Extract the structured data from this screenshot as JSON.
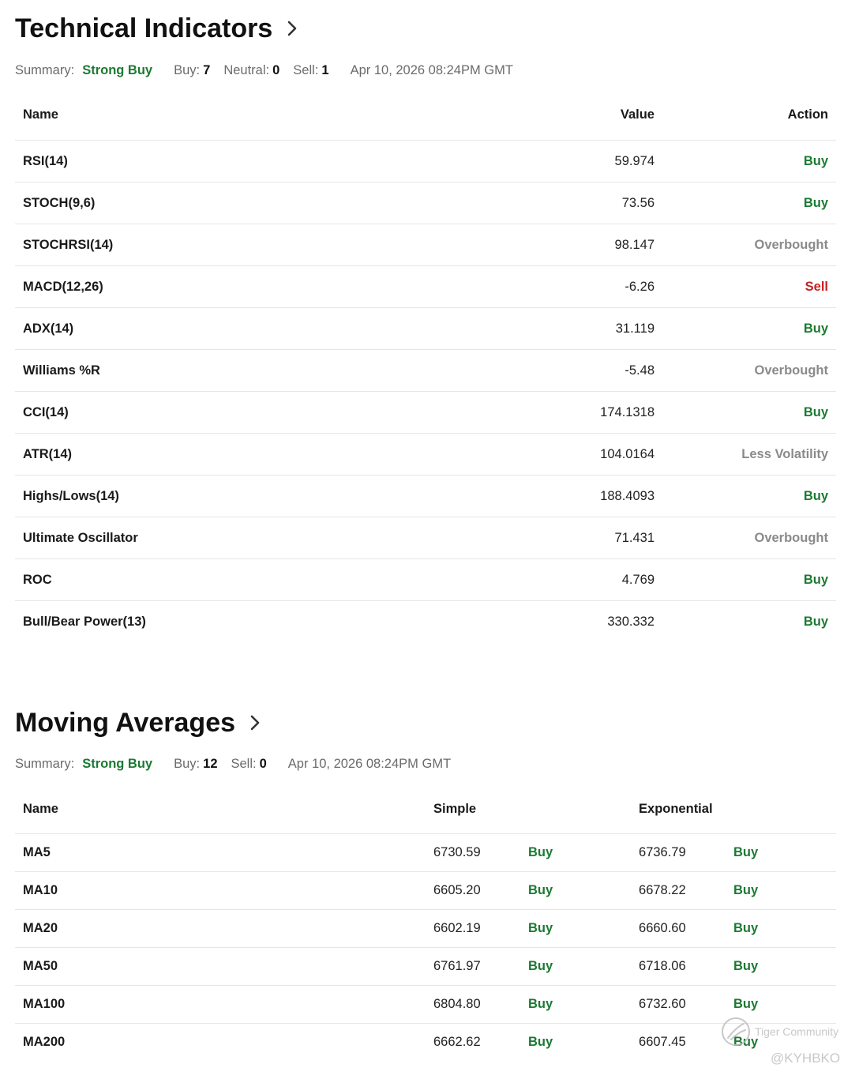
{
  "technical_indicators": {
    "title": "Technical Indicators",
    "chevron_icon": "chevron-right-icon",
    "summary": {
      "label": "Summary:",
      "value": "Strong Buy",
      "buy_label": "Buy:",
      "buy_count": "7",
      "neutral_label": "Neutral:",
      "neutral_count": "0",
      "sell_label": "Sell:",
      "sell_count": "1",
      "timestamp": "Apr 10, 2026 08:24PM GMT"
    },
    "columns": {
      "name": "Name",
      "value": "Value",
      "action": "Action"
    },
    "rows": [
      {
        "name": "RSI(14)",
        "value": "59.974",
        "action": "Buy",
        "tone": "buy"
      },
      {
        "name": "STOCH(9,6)",
        "value": "73.56",
        "action": "Buy",
        "tone": "buy"
      },
      {
        "name": "STOCHRSI(14)",
        "value": "98.147",
        "action": "Overbought",
        "tone": "neutral"
      },
      {
        "name": "MACD(12,26)",
        "value": "-6.26",
        "action": "Sell",
        "tone": "sell"
      },
      {
        "name": "ADX(14)",
        "value": "31.119",
        "action": "Buy",
        "tone": "buy"
      },
      {
        "name": "Williams %R",
        "value": "-5.48",
        "action": "Overbought",
        "tone": "neutral"
      },
      {
        "name": "CCI(14)",
        "value": "174.1318",
        "action": "Buy",
        "tone": "buy"
      },
      {
        "name": "ATR(14)",
        "value": "104.0164",
        "action": "Less Volatility",
        "tone": "neutral"
      },
      {
        "name": "Highs/Lows(14)",
        "value": "188.4093",
        "action": "Buy",
        "tone": "buy"
      },
      {
        "name": "Ultimate Oscillator",
        "value": "71.431",
        "action": "Overbought",
        "tone": "neutral"
      },
      {
        "name": "ROC",
        "value": "4.769",
        "action": "Buy",
        "tone": "buy"
      },
      {
        "name": "Bull/Bear Power(13)",
        "value": "330.332",
        "action": "Buy",
        "tone": "buy"
      }
    ]
  },
  "moving_averages": {
    "title": "Moving Averages",
    "chevron_icon": "chevron-right-icon",
    "summary": {
      "label": "Summary:",
      "value": "Strong Buy",
      "buy_label": "Buy:",
      "buy_count": "12",
      "sell_label": "Sell:",
      "sell_count": "0",
      "timestamp": "Apr 10, 2026 08:24PM GMT"
    },
    "columns": {
      "name": "Name",
      "simple": "Simple",
      "exponential": "Exponential"
    },
    "rows": [
      {
        "name": "MA5",
        "simple": "6730.59",
        "simple_action": "Buy",
        "exp": "6736.79",
        "exp_action": "Buy"
      },
      {
        "name": "MA10",
        "simple": "6605.20",
        "simple_action": "Buy",
        "exp": "6678.22",
        "exp_action": "Buy"
      },
      {
        "name": "MA20",
        "simple": "6602.19",
        "simple_action": "Buy",
        "exp": "6660.60",
        "exp_action": "Buy"
      },
      {
        "name": "MA50",
        "simple": "6761.97",
        "simple_action": "Buy",
        "exp": "6718.06",
        "exp_action": "Buy"
      },
      {
        "name": "MA100",
        "simple": "6804.80",
        "simple_action": "Buy",
        "exp": "6732.60",
        "exp_action": "Buy"
      },
      {
        "name": "MA200",
        "simple": "6662.62",
        "simple_action": "Buy",
        "exp": "6607.45",
        "exp_action": "Buy"
      }
    ]
  },
  "watermark": {
    "brand": "Tiger Community",
    "handle": "@KYHBKO",
    "logo_icon": "tiger-logo-icon"
  },
  "colors": {
    "buy": "#1b7a32",
    "sell": "#c62222",
    "neutral": "#8a8a8a",
    "divider": "#e6e6e6"
  }
}
